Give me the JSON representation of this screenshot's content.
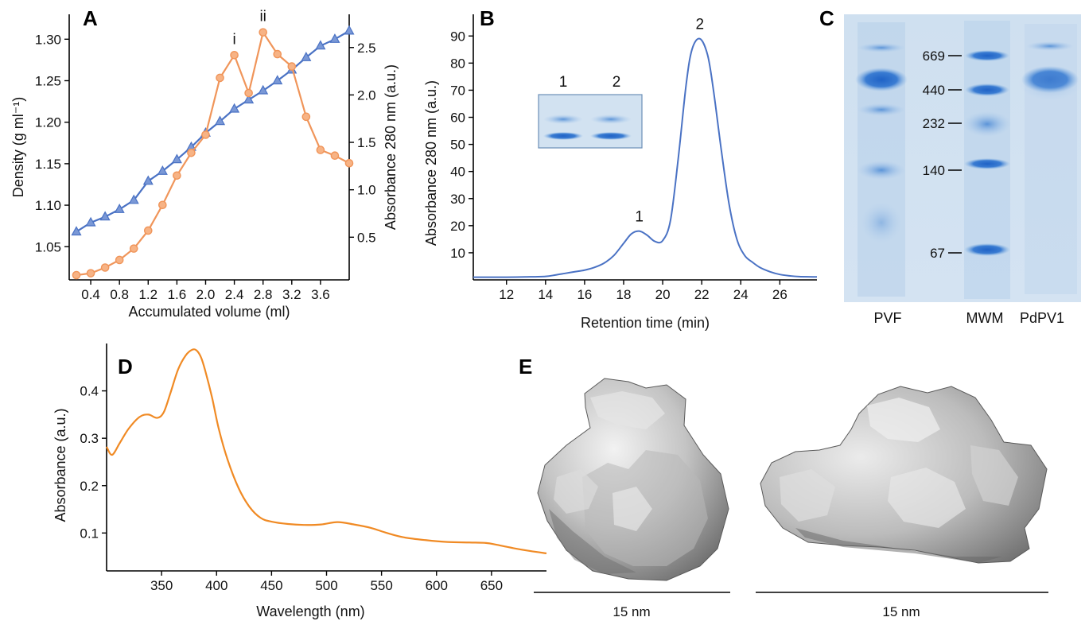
{
  "panels": {
    "a": "A",
    "b": "B",
    "c": "C",
    "d": "D",
    "e": "E"
  },
  "chart_data": [
    {
      "panel": "A",
      "type": "line",
      "xlabel": "Accumulated volume (ml)",
      "ylabel": "Density (g ml⁻¹)",
      "y2label": "Absorbance 280 nm (a.u.)",
      "xlim": [
        0.1,
        4.0
      ],
      "ylim": [
        1.01,
        1.33
      ],
      "y2lim": [
        0.05,
        2.85
      ],
      "xticks": [
        "0.4",
        "0.8",
        "1.2",
        "1.6",
        "2.0",
        "2.4",
        "2.8",
        "3.2",
        "3.6"
      ],
      "yticks": [
        "1.05",
        "1.10",
        "1.15",
        "1.20",
        "1.25",
        "1.30"
      ],
      "y2ticks": [
        "0.5",
        "1.0",
        "1.5",
        "2.0",
        "2.5"
      ],
      "annotations": [
        {
          "text": "i",
          "x": 2.4
        },
        {
          "text": "ii",
          "x": 2.8
        }
      ],
      "series": [
        {
          "axis": "left",
          "color": "#4a72c4",
          "marker": "triangle",
          "x": [
            0.2,
            0.4,
            0.6,
            0.8,
            1.0,
            1.2,
            1.4,
            1.6,
            1.8,
            2.0,
            2.2,
            2.4,
            2.6,
            2.8,
            3.0,
            3.2,
            3.4,
            3.6,
            3.8,
            4.0
          ],
          "values": [
            1.068,
            1.079,
            1.086,
            1.095,
            1.106,
            1.129,
            1.141,
            1.155,
            1.17,
            1.187,
            1.201,
            1.216,
            1.227,
            1.238,
            1.25,
            1.263,
            1.278,
            1.292,
            1.3,
            1.31
          ]
        },
        {
          "axis": "right",
          "color": "#f0955a",
          "marker": "circle",
          "x": [
            0.2,
            0.4,
            0.6,
            0.8,
            1.0,
            1.2,
            1.4,
            1.6,
            1.8,
            2.0,
            2.2,
            2.4,
            2.6,
            2.8,
            3.0,
            3.2,
            3.4,
            3.6,
            3.8,
            4.0
          ],
          "values": [
            0.1,
            0.12,
            0.18,
            0.26,
            0.38,
            0.57,
            0.84,
            1.15,
            1.39,
            1.58,
            2.18,
            2.42,
            2.02,
            2.66,
            2.43,
            2.3,
            1.77,
            1.42,
            1.36,
            1.28
          ]
        }
      ]
    },
    {
      "panel": "B",
      "type": "line",
      "xlabel": "Retention time (min)",
      "ylabel": "Absorbance 280 nm (a.u.)",
      "xlim": [
        10.3,
        27.9
      ],
      "ylim": [
        0,
        98
      ],
      "xticks": [
        "12",
        "14",
        "16",
        "18",
        "20",
        "22",
        "24",
        "26"
      ],
      "yticks": [
        "10",
        "20",
        "30",
        "40",
        "50",
        "60",
        "70",
        "80",
        "90"
      ],
      "peak_labels": [
        {
          "text": "1",
          "x": 18.8,
          "y": 18
        },
        {
          "text": "2",
          "x": 21.9,
          "y": 89
        }
      ],
      "inset_labels": [
        "1",
        "2"
      ],
      "series": [
        {
          "color": "#4a72c4",
          "x": [
            10.3,
            12,
            13,
            14,
            14.5,
            15,
            15.5,
            16,
            16.5,
            17,
            17.5,
            18,
            18.4,
            18.8,
            19.2,
            19.6,
            20,
            20.4,
            20.8,
            21.2,
            21.5,
            21.9,
            22.3,
            22.6,
            23,
            23.4,
            23.8,
            24.2,
            24.6,
            25,
            25.5,
            26,
            26.5,
            27,
            27.9
          ],
          "values": [
            1,
            1,
            1.1,
            1.3,
            1.8,
            2.4,
            3,
            3.6,
            4.6,
            6.2,
            9,
            13.5,
            17,
            18,
            16.5,
            14.2,
            14.5,
            22,
            45,
            72,
            85,
            89,
            83,
            70,
            48,
            28,
            15,
            9,
            6.5,
            4.5,
            3,
            2,
            1.5,
            1.2,
            1.1
          ]
        }
      ]
    },
    {
      "panel": "C",
      "type": "table",
      "lanes": [
        "PVF",
        "MWM",
        "PdPV1"
      ],
      "markers": [
        "669",
        "440",
        "232",
        "140",
        "67"
      ]
    },
    {
      "panel": "D",
      "type": "line",
      "xlabel": "Wavelength (nm)",
      "ylabel": "Absorbance (a.u.)",
      "xlim": [
        300,
        700
      ],
      "ylim": [
        0.02,
        0.5
      ],
      "xticks": [
        "350",
        "400",
        "450",
        "500",
        "550",
        "600",
        "650"
      ],
      "yticks": [
        "0.1",
        "0.2",
        "0.3",
        "0.4"
      ],
      "series": [
        {
          "color": "#f08a24",
          "x": [
            300,
            305,
            312,
            320,
            330,
            338,
            346,
            352,
            358,
            365,
            372,
            378,
            382,
            386,
            390,
            396,
            402,
            410,
            420,
            430,
            440,
            450,
            465,
            480,
            495,
            510,
            525,
            540,
            555,
            570,
            590,
            610,
            630,
            645,
            655,
            670,
            685,
            700
          ],
          "values": [
            0.282,
            0.265,
            0.29,
            0.32,
            0.345,
            0.35,
            0.343,
            0.355,
            0.395,
            0.445,
            0.475,
            0.487,
            0.485,
            0.47,
            0.44,
            0.385,
            0.32,
            0.255,
            0.195,
            0.155,
            0.132,
            0.124,
            0.119,
            0.117,
            0.118,
            0.123,
            0.118,
            0.111,
            0.1,
            0.091,
            0.085,
            0.081,
            0.08,
            0.079,
            0.075,
            0.068,
            0.062,
            0.057
          ]
        }
      ]
    },
    {
      "panel": "E",
      "type": "table",
      "scale_bars": [
        "15 nm",
        "15 nm"
      ]
    }
  ]
}
